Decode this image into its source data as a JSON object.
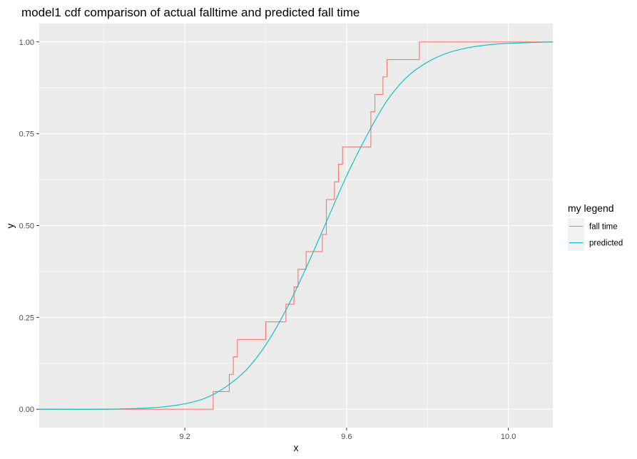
{
  "chart_data": {
    "type": "line",
    "title": "model1 cdf comparison of actual falltime and predicted fall time",
    "xlabel": "x",
    "ylabel": "y",
    "xlim": [
      8.84,
      10.11
    ],
    "ylim": [
      -0.05,
      1.05
    ],
    "x_ticks": [
      9.2,
      9.6,
      10.0
    ],
    "x_tick_labels": [
      "9.2",
      "9.6",
      "10.0"
    ],
    "y_ticks": [
      0,
      0.25,
      0.5,
      0.75,
      1.0
    ],
    "y_tick_labels": [
      "0.00",
      "0.25",
      "0.50",
      "0.75",
      "1.00"
    ],
    "grid": true,
    "legend": {
      "title": "my legend",
      "position": "right",
      "entries": [
        "fall time",
        "predicted"
      ]
    },
    "series": [
      {
        "name": "fall time",
        "color": "#F8766D",
        "style": "step",
        "x": [
          8.84,
          9.27,
          9.31,
          9.32,
          9.33,
          9.39,
          9.4,
          9.45,
          9.47,
          9.48,
          9.49,
          9.5,
          9.54,
          9.55,
          9.57,
          9.58,
          9.59,
          9.6,
          9.66,
          9.67,
          9.69,
          9.7,
          9.78,
          10.11
        ],
        "y": [
          0.0,
          0.048,
          0.095,
          0.143,
          0.19,
          0.19,
          0.238,
          0.286,
          0.333,
          0.381,
          0.381,
          0.429,
          0.476,
          0.571,
          0.619,
          0.667,
          0.714,
          0.714,
          0.81,
          0.857,
          0.905,
          0.952,
          1.0,
          1.0
        ]
      },
      {
        "name": "predicted",
        "color": "#00BFC4",
        "style": "line",
        "x": [
          8.84,
          9.0,
          9.1,
          9.15,
          9.2,
          9.25,
          9.3,
          9.35,
          9.4,
          9.45,
          9.5,
          9.55,
          9.6,
          9.65,
          9.7,
          9.75,
          9.8,
          9.85,
          9.9,
          9.95,
          10.0,
          10.05,
          10.11
        ],
        "y": [
          0.0,
          0.0,
          0.003,
          0.007,
          0.015,
          0.03,
          0.06,
          0.105,
          0.175,
          0.27,
          0.385,
          0.51,
          0.635,
          0.745,
          0.84,
          0.905,
          0.945,
          0.97,
          0.984,
          0.992,
          0.996,
          0.998,
          1.0
        ]
      }
    ]
  }
}
